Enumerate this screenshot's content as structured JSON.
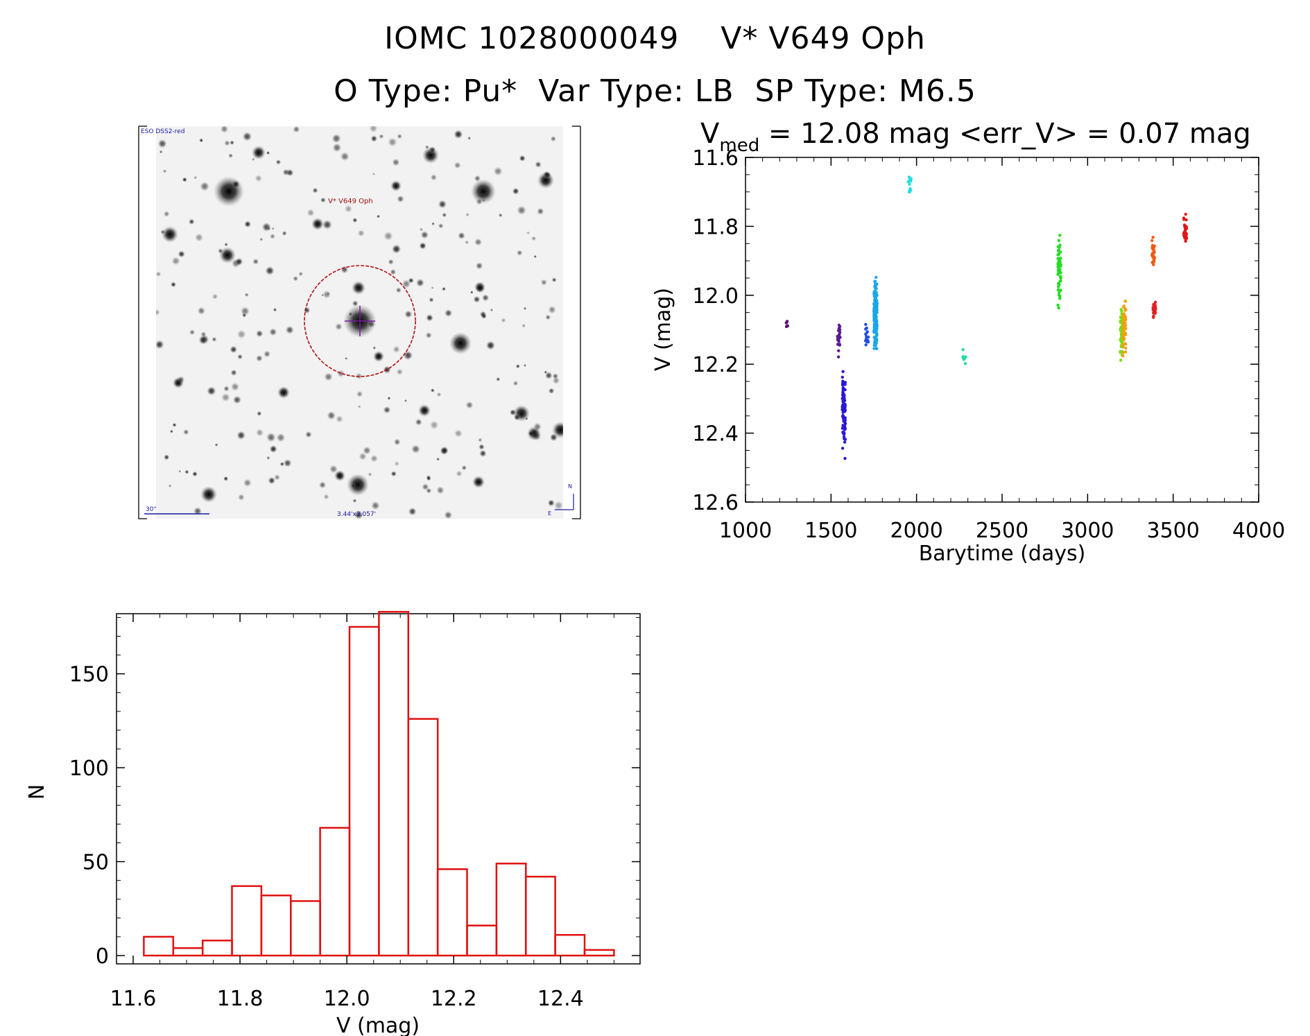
{
  "header": {
    "line1": "IOMC 1028000049    V* V649 Oph",
    "line2": "O Type: Pu*  Var Type: LB  SP Type: M6.5"
  },
  "sky_image": {
    "survey_label": "ESO DSS2-red",
    "target_label": "V* V649 Oph",
    "scale_label": "30\"",
    "size_label": "3.44'x3.057'",
    "north_label": "N",
    "east_label": "E"
  },
  "chart_data": [
    {
      "type": "scatter",
      "name": "light-curve",
      "title_main": "V",
      "title_sub": "med",
      "title_rest": " = 12.08 mag <err_V> = 0.07 mag",
      "xlabel": "Barytime (days)",
      "ylabel": "V (mag)",
      "xlim": [
        1000,
        4000
      ],
      "ylim": [
        11.6,
        12.6
      ],
      "y_inverted": true,
      "xticks": [
        "1000",
        "1500",
        "2000",
        "2500",
        "3000",
        "3500",
        "4000"
      ],
      "yticks": [
        "11.6",
        "11.8",
        "12.0",
        "12.2",
        "12.4",
        "12.6"
      ],
      "clusters": [
        {
          "x": 1240,
          "ymin": 12.07,
          "ymax": 12.1,
          "n": 5,
          "color": "#5a0a6e"
        },
        {
          "x": 1545,
          "ymin": 12.06,
          "ymax": 12.2,
          "n": 25,
          "color": "#5a1a8e"
        },
        {
          "x": 1575,
          "ymin": 12.19,
          "ymax": 12.48,
          "n": 90,
          "color": "#2a18d8"
        },
        {
          "x": 1710,
          "ymin": 12.07,
          "ymax": 12.17,
          "n": 15,
          "color": "#1f4fe8"
        },
        {
          "x": 1760,
          "ymin": 11.91,
          "ymax": 12.19,
          "n": 160,
          "color": "#1aa6ea"
        },
        {
          "x": 1960,
          "ymin": 11.62,
          "ymax": 11.74,
          "n": 10,
          "color": "#20dede"
        },
        {
          "x": 2280,
          "ymin": 12.15,
          "ymax": 12.21,
          "n": 8,
          "color": "#22dda0"
        },
        {
          "x": 2835,
          "ymin": 11.79,
          "ymax": 12.08,
          "n": 55,
          "color": "#22dd22"
        },
        {
          "x": 3200,
          "ymin": 12.0,
          "ymax": 12.22,
          "n": 60,
          "color": "#77dd11"
        },
        {
          "x": 3215,
          "ymin": 11.98,
          "ymax": 12.2,
          "n": 70,
          "color": "#f0a010"
        },
        {
          "x": 3385,
          "ymin": 11.81,
          "ymax": 11.95,
          "n": 30,
          "color": "#f05a10"
        },
        {
          "x": 3390,
          "ymin": 12.0,
          "ymax": 12.08,
          "n": 25,
          "color": "#e02020"
        },
        {
          "x": 3570,
          "ymin": 11.74,
          "ymax": 11.87,
          "n": 30,
          "color": "#e01818"
        }
      ]
    },
    {
      "type": "bar",
      "name": "histogram",
      "xlabel": "V (mag)",
      "ylabel": "N",
      "xlim": [
        11.6,
        12.58
      ],
      "ylim": [
        0,
        182
      ],
      "xticks": [
        "11.6",
        "11.8",
        "12.0",
        "12.2",
        "12.4"
      ],
      "yticks": [
        "0",
        "50",
        "100",
        "150"
      ],
      "bin_start": 11.62,
      "bin_width": 0.055,
      "values": [
        10,
        4,
        8,
        37,
        32,
        29,
        68,
        175,
        183,
        126,
        46,
        16,
        49,
        42,
        11,
        3
      ],
      "color": "#e01010"
    }
  ]
}
